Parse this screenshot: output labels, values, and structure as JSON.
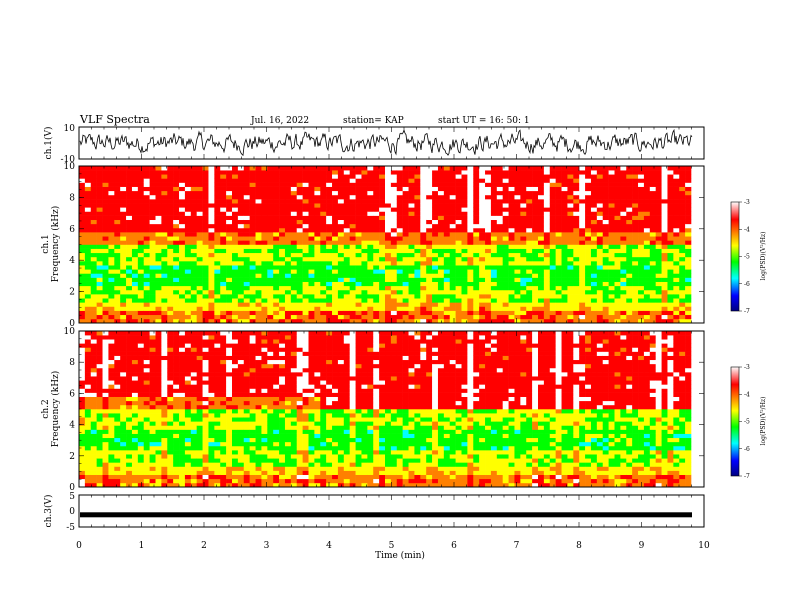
{
  "header": {
    "title": "VLF Spectra",
    "date": "Jul. 16, 2022",
    "station": "station= KAP",
    "start": "start  UT =   16: 50: 1"
  },
  "colors": {
    "spectrogram_low": "#ffffff",
    "cmap": [
      "#000080",
      "#0000ff",
      "#00ffff",
      "#00ff00",
      "#ffff00",
      "#ff8000",
      "#ff0000",
      "#ffffff"
    ]
  },
  "chart_data": [
    {
      "type": "line",
      "panel": "ch1-waveform",
      "ylabel": "ch.1(V)",
      "ylim": [
        -10,
        10
      ],
      "yticks": [
        "10",
        "-10"
      ],
      "xlim": [
        0,
        10
      ],
      "note_series": "voltage trace fluctuating roughly between -8 and 8 V"
    },
    {
      "type": "heatmap",
      "panel": "ch1-spectrogram",
      "ylabel": "ch.1\nFrequency (kHz)",
      "ylabel_line1": "ch.1",
      "ylabel_line2": "Frequency (kHz)",
      "ylim": [
        0,
        10
      ],
      "yticks": [
        "0",
        "2",
        "4",
        "6",
        "8",
        "10"
      ],
      "xlim": [
        0,
        10
      ],
      "colorbar": {
        "label": "log(PSD)(V²/Hz)",
        "range": [
          -7,
          -3
        ],
        "ticks": [
          "-3",
          "-4",
          "-5",
          "-6",
          "-7"
        ]
      }
    },
    {
      "type": "heatmap",
      "panel": "ch2-spectrogram",
      "ylabel_line1": "ch.2",
      "ylabel_line2": "Frequency (kHz)",
      "ylim": [
        0,
        10
      ],
      "yticks": [
        "0",
        "2",
        "4",
        "6",
        "8",
        "10"
      ],
      "xlim": [
        0,
        10
      ],
      "colorbar": {
        "label": "log(PSD)(V²/Hz)",
        "range": [
          -7,
          -3
        ],
        "ticks": [
          "-3",
          "-4",
          "-5",
          "-6",
          "-7"
        ]
      }
    },
    {
      "type": "line",
      "panel": "ch3-waveform",
      "ylabel": "ch.3(V)",
      "ylim": [
        -5,
        5
      ],
      "yticks": [
        "5",
        "0",
        "-5"
      ],
      "xlim": [
        0,
        10
      ],
      "level": -1.2
    }
  ],
  "xaxis": {
    "label": "Time (min)",
    "ticks": [
      "0",
      "1",
      "2",
      "3",
      "4",
      "5",
      "6",
      "7",
      "8",
      "9",
      "10"
    ]
  }
}
